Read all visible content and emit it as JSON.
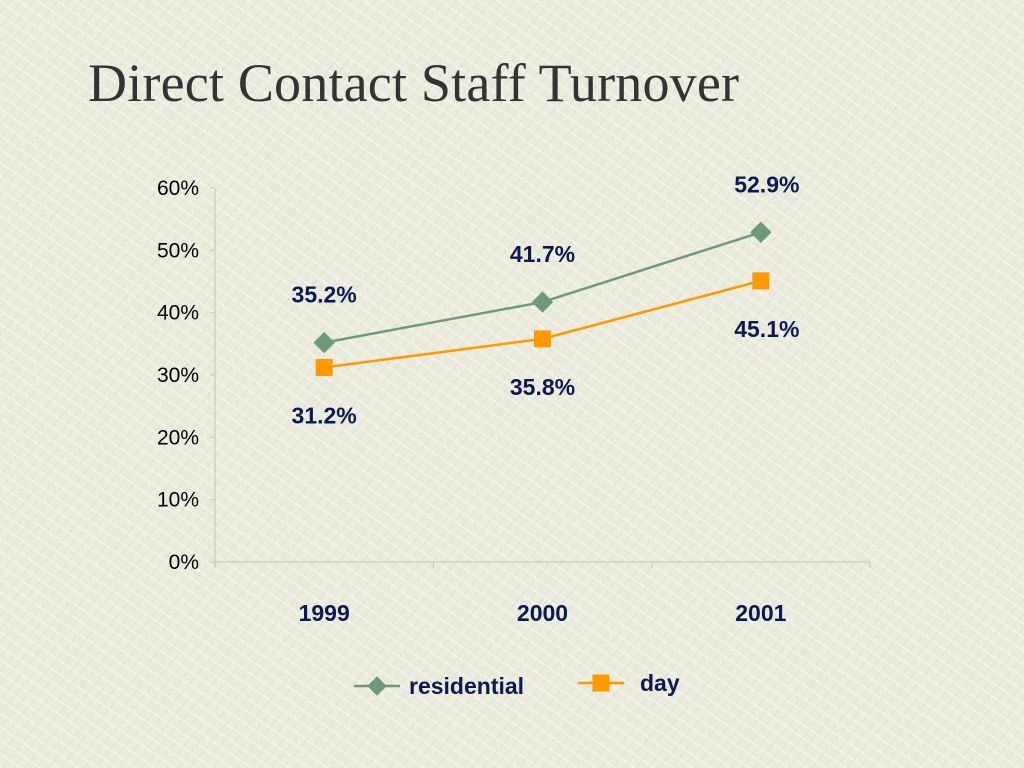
{
  "slide": {
    "title": "Direct Contact Staff Turnover"
  },
  "chart_data": {
    "type": "line",
    "title": "",
    "xlabel": "",
    "ylabel": "",
    "categories": [
      "1999",
      "2000",
      "2001"
    ],
    "ylim": [
      0,
      60
    ],
    "yticks": [
      0,
      10,
      20,
      30,
      40,
      50,
      60
    ],
    "ytick_labels": [
      "0%",
      "10%",
      "20%",
      "30%",
      "40%",
      "50%",
      "60%"
    ],
    "grid": false,
    "legend_position": "bottom",
    "series": [
      {
        "name": "residential",
        "values": [
          35.2,
          41.7,
          52.9
        ],
        "labels": [
          "35.2%",
          "41.7%",
          "52.9%"
        ],
        "color": "#6e9a7c",
        "marker": "diamond",
        "label_position": "above"
      },
      {
        "name": "day",
        "values": [
          31.2,
          35.8,
          45.1
        ],
        "labels": [
          "31.2%",
          "35.8%",
          "45.1%"
        ],
        "color": "#ff9900",
        "marker": "square",
        "label_position": "below"
      }
    ]
  }
}
